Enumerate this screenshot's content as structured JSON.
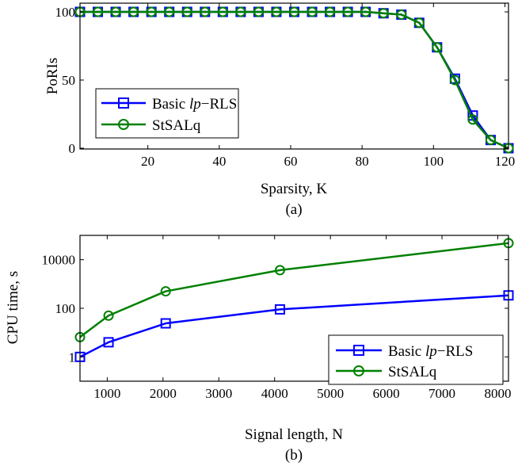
{
  "chart_data": [
    {
      "type": "line",
      "caption": "(a)",
      "xlabel": "Sparsity, K",
      "ylabel": "PoRIs",
      "xlim": [
        1,
        121
      ],
      "ylim": [
        0,
        100
      ],
      "xticks": [
        20,
        40,
        60,
        80,
        100,
        120
      ],
      "yticks": [
        0,
        50,
        100
      ],
      "yscale": "linear",
      "grid": false,
      "legend_position": "bottom-left",
      "x": [
        1,
        6,
        11,
        16,
        21,
        26,
        31,
        36,
        41,
        46,
        51,
        56,
        61,
        66,
        71,
        76,
        81,
        86,
        91,
        96,
        101,
        106,
        111,
        116,
        121
      ],
      "series": [
        {
          "name_prefix": "Basic ",
          "name_italic": "lp",
          "name_suffix": "−RLS",
          "color": "#0000ff",
          "marker": "square",
          "values": [
            100,
            100,
            100,
            100,
            100,
            100,
            100,
            100,
            100,
            100,
            100,
            100,
            100,
            100,
            100,
            100,
            100,
            99,
            98,
            92,
            74,
            51,
            24,
            6,
            0
          ]
        },
        {
          "name": "StSALq",
          "color": "#008000",
          "marker": "circle",
          "values": [
            100,
            100,
            100,
            100,
            100,
            100,
            100,
            100,
            100,
            100,
            100,
            100,
            100,
            100,
            100,
            100,
            100,
            99,
            98,
            92,
            74,
            50,
            21,
            6,
            0
          ]
        }
      ]
    },
    {
      "type": "line",
      "caption": "(b)",
      "xlabel": "Signal length, N",
      "ylabel": "CPU time, s",
      "xlim": [
        512,
        8192
      ],
      "yscale": "log",
      "ylim_log10": [
        -1,
        1.7
      ],
      "xticks": [
        1000,
        2000,
        3000,
        4000,
        5000,
        6000,
        7000,
        8000
      ],
      "yticks": [
        1,
        100,
        10000
      ],
      "grid": false,
      "legend_position": "bottom-right",
      "x": [
        512,
        1024,
        2048,
        4096,
        8192
      ],
      "series": [
        {
          "name_prefix": "Basic ",
          "name_italic": "lp",
          "name_suffix": "−RLS",
          "color": "#0000ff",
          "marker": "square",
          "values": [
            1,
            4,
            24,
            90,
            340
          ]
        },
        {
          "name": "StSALq",
          "color": "#008000",
          "marker": "circle",
          "values": [
            6.5,
            50,
            500,
            3700,
            48000
          ]
        }
      ]
    }
  ]
}
